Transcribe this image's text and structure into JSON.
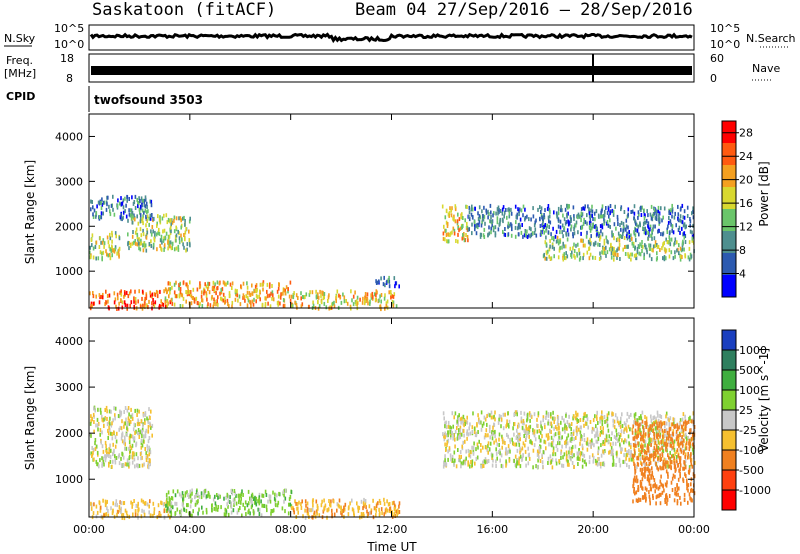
{
  "header": {
    "station": "Saskatoon (fitACF)",
    "beam_info": "Beam 04  27/Sep/2016 – 28/Sep/2016"
  },
  "nsky_panel": {
    "left_label": "N.Sky",
    "left_ticks": [
      "10^5",
      "10^0"
    ],
    "right_ticks": [
      "10^5",
      "10^0"
    ],
    "right_label": "N.Search"
  },
  "freq_panel": {
    "left_label_1": "Freq.",
    "left_label_2": "[MHz]",
    "left_ticks": [
      "18",
      "8"
    ],
    "right_ticks": [
      "60",
      "0"
    ],
    "right_label": "Nave"
  },
  "cpid_panel": {
    "left_label": "CPID",
    "program": "twofsound 3503"
  },
  "x_axis": {
    "label": "Time UT",
    "ticks": [
      "00:00",
      "04:00",
      "08:00",
      "12:00",
      "16:00",
      "20:00",
      "00:00"
    ]
  },
  "chart_data": [
    {
      "type": "heatmap",
      "title": "Power",
      "ylabel": "Slant Range [km]",
      "xlabel": "Time UT",
      "x_ticks": [
        "00:00",
        "04:00",
        "08:00",
        "12:00",
        "16:00",
        "20:00",
        "00:00"
      ],
      "y_ticks": [
        1000,
        2000,
        3000,
        4000
      ],
      "ylim": [
        180,
        4500
      ],
      "xlim_hours": [
        0,
        24
      ],
      "colorbar": {
        "label": "Power [dB]",
        "ticks": [
          4,
          8,
          12,
          16,
          20,
          24,
          28
        ],
        "range": [
          0,
          30
        ],
        "colors": [
          "#0000ff",
          "#2c5ab0",
          "#4e8f8f",
          "#6ac56a",
          "#d8d830",
          "#f4a020",
          "#ff5a10",
          "#ff0000"
        ]
      },
      "series": [
        {
          "t_start": 0.0,
          "t_end": 3.2,
          "r_low": 200,
          "r_high": 600,
          "value_db": 24
        },
        {
          "t_start": 0.0,
          "t_end": 1.2,
          "r_low": 1300,
          "r_high": 1900,
          "value_db": 16
        },
        {
          "t_start": 0.0,
          "t_end": 2.5,
          "r_low": 2200,
          "r_high": 2700,
          "value_db": 8
        },
        {
          "t_start": 1.5,
          "t_end": 4.0,
          "r_low": 1500,
          "r_high": 2300,
          "value_db": 14
        },
        {
          "t_start": 3.0,
          "t_end": 8.0,
          "r_low": 250,
          "r_high": 800,
          "value_db": 20
        },
        {
          "t_start": 8.0,
          "t_end": 12.3,
          "r_low": 200,
          "r_high": 600,
          "value_db": 18
        },
        {
          "t_start": 11.3,
          "t_end": 12.3,
          "r_low": 700,
          "r_high": 900,
          "value_db": 6
        },
        {
          "t_start": 14.0,
          "t_end": 15.0,
          "r_low": 1700,
          "r_high": 2500,
          "value_db": 18
        },
        {
          "t_start": 15.0,
          "t_end": 24.0,
          "r_low": 1800,
          "r_high": 2500,
          "value_db": 8
        },
        {
          "t_start": 18.0,
          "t_end": 24.0,
          "r_low": 1300,
          "r_high": 1800,
          "value_db": 14
        }
      ]
    },
    {
      "type": "heatmap",
      "title": "Velocity",
      "ylabel": "Slant Range [km]",
      "xlabel": "Time UT",
      "x_ticks": [
        "00:00",
        "04:00",
        "08:00",
        "12:00",
        "16:00",
        "20:00",
        "00:00"
      ],
      "y_ticks": [
        1000,
        2000,
        3000,
        4000
      ],
      "ylim": [
        180,
        4500
      ],
      "xlim_hours": [
        0,
        24
      ],
      "colorbar": {
        "label": "Velocity [m s^-1]",
        "ticks": [
          1000,
          500,
          100,
          25,
          -25,
          -100,
          -500,
          -1000
        ],
        "colors": [
          "#1a3fbf",
          "#2e7f5e",
          "#3fae3f",
          "#7fd030",
          "#c8c8c8",
          "#f5c030",
          "#f08020",
          "#ff4010",
          "#ff0000"
        ]
      },
      "series": [
        {
          "t_start": 0.0,
          "t_end": 3.2,
          "r_low": 200,
          "r_high": 600,
          "value_ms": -60
        },
        {
          "t_start": 0.0,
          "t_end": 2.5,
          "r_low": 1300,
          "r_high": 2600,
          "value_ms": 0
        },
        {
          "t_start": 3.0,
          "t_end": 8.0,
          "r_low": 250,
          "r_high": 800,
          "value_ms": 60
        },
        {
          "t_start": 8.0,
          "t_end": 12.3,
          "r_low": 200,
          "r_high": 600,
          "value_ms": -80
        },
        {
          "t_start": 14.0,
          "t_end": 24.0,
          "r_low": 1300,
          "r_high": 2500,
          "value_ms": 0
        },
        {
          "t_start": 21.5,
          "t_end": 24.0,
          "r_low": 500,
          "r_high": 2300,
          "value_ms": -400
        }
      ]
    }
  ]
}
